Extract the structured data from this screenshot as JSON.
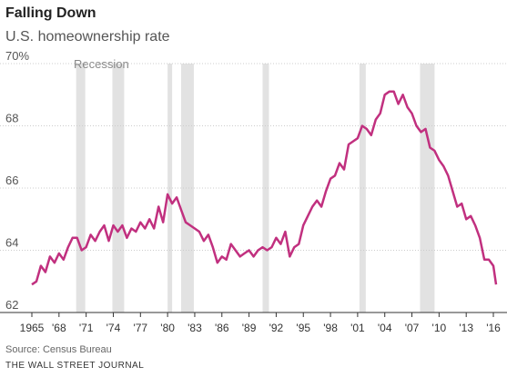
{
  "chart_data": {
    "type": "line",
    "title": "Falling Down",
    "subtitle": "U.S. homeownership rate",
    "annotation": "Recession",
    "source": "Source: Census Bureau",
    "credit": "THE WALL STREET JOURNAL",
    "xlim": [
      1965,
      2016.3
    ],
    "ylim": [
      62,
      70
    ],
    "yticks": [
      {
        "value": 70,
        "label": "70%"
      },
      68,
      66,
      64,
      62
    ],
    "xticks": [
      {
        "value": 1965,
        "label": "1965"
      },
      {
        "value": 1968,
        "label": "'68"
      },
      {
        "value": 1971,
        "label": "'71"
      },
      {
        "value": 1974,
        "label": "'74"
      },
      {
        "value": 1977,
        "label": "'77"
      },
      {
        "value": 1980,
        "label": "'80"
      },
      {
        "value": 1983,
        "label": "'83"
      },
      {
        "value": 1986,
        "label": "'86"
      },
      {
        "value": 1989,
        "label": "'89"
      },
      {
        "value": 1992,
        "label": "'92"
      },
      {
        "value": 1995,
        "label": "'95"
      },
      {
        "value": 1998,
        "label": "'98"
      },
      {
        "value": 2001,
        "label": "'01"
      },
      {
        "value": 2004,
        "label": "'04"
      },
      {
        "value": 2007,
        "label": "'07"
      },
      {
        "value": 2010,
        "label": "'10"
      },
      {
        "value": 2013,
        "label": "'13"
      },
      {
        "value": 2016,
        "label": "'16"
      }
    ],
    "grid": true,
    "recession_color": "#e2e2e2",
    "recessions": [
      [
        1969.9,
        1970.9
      ],
      [
        1973.9,
        1975.2
      ],
      [
        1980.0,
        1980.5
      ],
      [
        1981.5,
        1982.9
      ],
      [
        1990.5,
        1991.2
      ],
      [
        2001.2,
        2001.9
      ],
      [
        2007.9,
        2009.5
      ]
    ],
    "x": [
      1965,
      1965.5,
      1966,
      1966.5,
      1967,
      1967.5,
      1968,
      1968.5,
      1969,
      1969.5,
      1970,
      1970.5,
      1971,
      1971.5,
      1972,
      1972.5,
      1973,
      1973.5,
      1974,
      1974.5,
      1975,
      1975.5,
      1976,
      1976.5,
      1977,
      1977.5,
      1978,
      1978.5,
      1979,
      1979.5,
      1980,
      1980.5,
      1981,
      1981.5,
      1982,
      1982.5,
      1983,
      1983.5,
      1984,
      1984.5,
      1985,
      1985.5,
      1986,
      1986.5,
      1987,
      1987.5,
      1988,
      1988.5,
      1989,
      1989.5,
      1990,
      1990.5,
      1991,
      1991.5,
      1992,
      1992.5,
      1993,
      1993.5,
      1994,
      1994.5,
      1995,
      1995.5,
      1996,
      1996.5,
      1997,
      1997.5,
      1998,
      1998.5,
      1999,
      1999.5,
      2000,
      2000.5,
      2001,
      2001.5,
      2002,
      2002.5,
      2003,
      2003.5,
      2004,
      2004.5,
      2005,
      2005.5,
      2006,
      2006.5,
      2007,
      2007.5,
      2008,
      2008.5,
      2009,
      2009.5,
      2010,
      2010.5,
      2011,
      2011.5,
      2012,
      2012.5,
      2013,
      2013.5,
      2014,
      2014.5,
      2015,
      2015.5,
      2016,
      2016.3
    ],
    "series": [
      {
        "name": "Homeownership rate",
        "color": "#c1307f",
        "values": [
          62.9,
          63.0,
          63.5,
          63.3,
          63.8,
          63.6,
          63.9,
          63.7,
          64.1,
          64.4,
          64.4,
          64.0,
          64.1,
          64.5,
          64.3,
          64.6,
          64.8,
          64.3,
          64.8,
          64.6,
          64.8,
          64.4,
          64.7,
          64.6,
          64.9,
          64.7,
          65.0,
          64.7,
          65.4,
          64.9,
          65.8,
          65.5,
          65.7,
          65.3,
          64.9,
          64.8,
          64.7,
          64.6,
          64.3,
          64.5,
          64.1,
          63.6,
          63.8,
          63.7,
          64.2,
          64.0,
          63.8,
          63.9,
          64.0,
          63.8,
          64.0,
          64.1,
          64.0,
          64.1,
          64.4,
          64.2,
          64.6,
          63.8,
          64.1,
          64.2,
          64.8,
          65.1,
          65.4,
          65.6,
          65.4,
          65.9,
          66.3,
          66.4,
          66.8,
          66.6,
          67.4,
          67.5,
          67.6,
          68.0,
          67.9,
          67.7,
          68.2,
          68.4,
          69.0,
          69.1,
          69.1,
          68.7,
          69.0,
          68.6,
          68.4,
          68.0,
          67.8,
          67.9,
          67.3,
          67.2,
          66.9,
          66.7,
          66.4,
          65.9,
          65.4,
          65.5,
          65.0,
          65.1,
          64.8,
          64.4,
          63.7,
          63.7,
          63.5,
          62.9
        ]
      }
    ]
  }
}
